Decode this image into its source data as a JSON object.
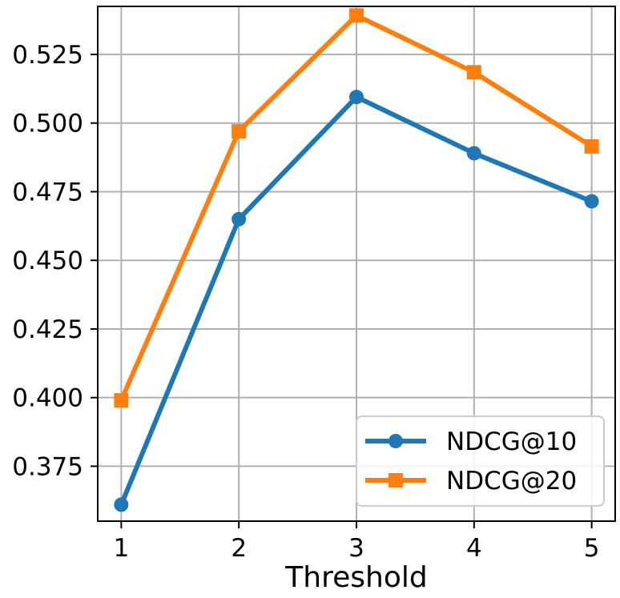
{
  "chart_data": {
    "type": "line",
    "title": "",
    "xlabel": "Threshold",
    "ylabel": "",
    "x": [
      1,
      2,
      3,
      4,
      5
    ],
    "xticks": [
      "1",
      "2",
      "3",
      "4",
      "5"
    ],
    "xlim": [
      0.8,
      5.2
    ],
    "ylim": [
      0.355,
      0.5425
    ],
    "yticks": [
      "0.375",
      "0.400",
      "0.425",
      "0.450",
      "0.475",
      "0.500",
      "0.525"
    ],
    "ytick_values": [
      0.375,
      0.4,
      0.425,
      0.45,
      0.475,
      0.5,
      0.525
    ],
    "grid": true,
    "legend_position": "lower-right",
    "series": [
      {
        "name": "NDCG@10",
        "marker": "circle",
        "color": "#1f77b4",
        "values": [
          0.361,
          0.465,
          0.5095,
          0.489,
          0.4715
        ]
      },
      {
        "name": "NDCG@20",
        "marker": "square",
        "color": "#ff7f0e",
        "values": [
          0.399,
          0.497,
          0.5392,
          0.5185,
          0.4915
        ]
      }
    ]
  }
}
